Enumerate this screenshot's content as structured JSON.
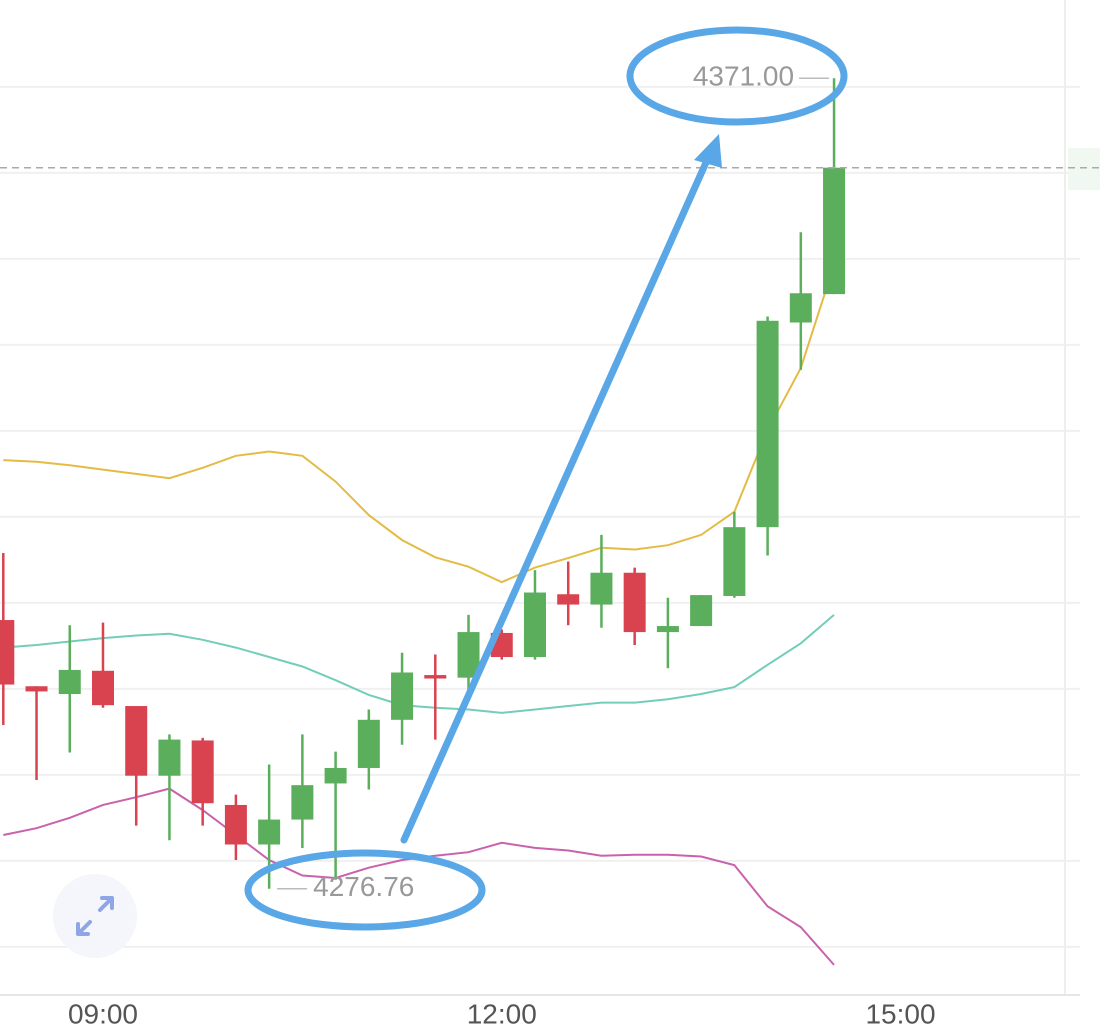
{
  "chart_data": {
    "type": "candlestick",
    "categories": [
      null,
      null,
      null,
      "09:00",
      null,
      null,
      null,
      null,
      null,
      null,
      null,
      null,
      null,
      null,
      null,
      "12:00",
      null,
      null,
      null,
      null,
      null,
      null,
      null,
      null,
      null,
      null,
      null,
      "15:00"
    ],
    "open": [
      4308.0,
      4300.3,
      4299.4,
      4302.1,
      4298.0,
      4289.9,
      4294.0,
      4286.5,
      4281.9,
      4284.8,
      4289.0,
      4290.8,
      4296.4,
      4301.6,
      4301.3,
      4306.5,
      4303.7,
      4311.0,
      4309.8,
      4313.5,
      4306.6,
      4307.3,
      4310.8,
      4318.8,
      4342.6,
      4345.9,
      null,
      null
    ],
    "high": [
      4315.8,
      4300.3,
      4307.4,
      4307.7,
      4298.0,
      4294.7,
      4294.3,
      4287.7,
      4291.2,
      4294.7,
      4292.7,
      4297.6,
      4304.2,
      4304.0,
      4308.6,
      4306.9,
      4313.8,
      4314.8,
      4317.9,
      4314.1,
      4310.6,
      4310.9,
      4320.6,
      4343.3,
      4353.1,
      4371,
      null,
      null
    ],
    "low": [
      4295.8,
      4289.4,
      4292.6,
      4297.8,
      4284.1,
      4282.4,
      4284.1,
      4280.1,
      4276.76,
      4281.5,
      4277.8,
      4288.3,
      4293.5,
      4294.1,
      4299.9,
      4303.4,
      4303.4,
      4307.4,
      4307.1,
      4305.1,
      4302.4,
      4307.3,
      4310.6,
      4315.5,
      4337.1,
      4345.9,
      null,
      null
    ],
    "close": [
      4300.5,
      4299.7,
      4302.2,
      4298.1,
      4289.9,
      4294.1,
      4286.7,
      4281.9,
      4284.8,
      4288.8,
      4290.8,
      4296.4,
      4301.9,
      4301.2,
      4306.6,
      4303.7,
      4311.2,
      4309.8,
      4313.5,
      4306.6,
      4307.3,
      4310.9,
      4318.8,
      4342.8,
      4346.0,
      4360.6,
      null,
      null
    ],
    "up_color": "#5aae5c",
    "down_color": "#d8434f",
    "series": [
      {
        "color": "#e3bb45",
        "values": [
          4326.6,
          4326.4,
          4326.0,
          4325.5,
          4325.0,
          4324.5,
          4325.7,
          4327.1,
          4327.6,
          4327.1,
          4324.1,
          4320.2,
          4317.3,
          4315.3,
          4314.2,
          4312.4,
          4314.1,
          4315.2,
          4316.4,
          4316.2,
          4316.7,
          4317.9,
          4320.6,
          4330.1,
          4337.3,
          4349.3,
          null,
          null
        ]
      },
      {
        "color": "#72cdb9",
        "values": [
          4304.8,
          4305.1,
          4305.5,
          4305.9,
          4306.2,
          4306.4,
          4305.7,
          4304.8,
          4303.7,
          4302.6,
          4301.0,
          4299.3,
          4298.1,
          4297.8,
          4297.6,
          4297.2,
          4297.6,
          4298.0,
          4298.4,
          4298.4,
          4298.8,
          4299.4,
          4300.2,
          4302.8,
          4305.3,
          4308.6,
          null,
          null
        ]
      },
      {
        "color": "#c862ac",
        "values": [
          4283.0,
          4283.8,
          4285.0,
          4286.5,
          4287.4,
          4288.4,
          4285.9,
          4283.0,
          4280.1,
          4278.3,
          4278.0,
          4279.2,
          4280.1,
          4280.6,
          4281.0,
          4282.1,
          4281.5,
          4281.2,
          4280.6,
          4280.7,
          4280.7,
          4280.5,
          4279.5,
          4274.7,
          4272.3,
          4267.9,
          null,
          null
        ]
      }
    ],
    "high_label": "4371.00",
    "low_label": "4276.76",
    "last_price_line": true,
    "ylim": [
      4264.4,
      4380.1
    ],
    "yticks": [
      4270,
      4280,
      4290,
      4300,
      4310,
      4320,
      4330,
      4340,
      4350,
      4360,
      4370
    ],
    "grid": true
  }
}
